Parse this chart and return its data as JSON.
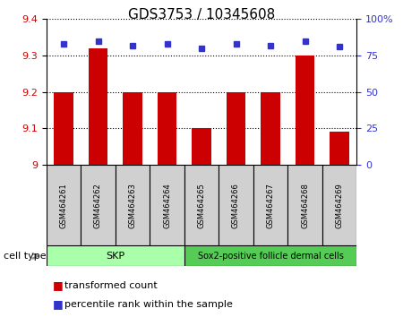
{
  "title": "GDS3753 / 10345608",
  "samples": [
    "GSM464261",
    "GSM464262",
    "GSM464263",
    "GSM464264",
    "GSM464265",
    "GSM464266",
    "GSM464267",
    "GSM464268",
    "GSM464269"
  ],
  "transformed_counts": [
    9.2,
    9.32,
    9.2,
    9.2,
    9.1,
    9.2,
    9.2,
    9.3,
    9.09
  ],
  "percentile_ranks": [
    83,
    85,
    82,
    83,
    80,
    83,
    82,
    85,
    81
  ],
  "ylim_left": [
    9.0,
    9.4
  ],
  "ylim_right": [
    0,
    100
  ],
  "yticks_left": [
    9.0,
    9.1,
    9.2,
    9.3,
    9.4
  ],
  "ytick_labels_left": [
    "9",
    "9.1",
    "9.2",
    "9.3",
    "9.4"
  ],
  "yticks_right": [
    0,
    25,
    50,
    75,
    100
  ],
  "ytick_labels_right": [
    "0",
    "25",
    "50",
    "75",
    "100%"
  ],
  "bar_color": "#cc0000",
  "dot_color": "#3333cc",
  "bar_width": 0.55,
  "group1_label": "SKP",
  "group2_label": "Sox2-positive follicle dermal cells",
  "group1_indices": [
    0,
    1,
    2,
    3
  ],
  "group2_indices": [
    4,
    5,
    6,
    7,
    8
  ],
  "group1_color": "#aaffaa",
  "group2_color": "#55cc55",
  "cell_type_label": "cell type",
  "legend_bar_label": "transformed count",
  "legend_dot_label": "percentile rank within the sample",
  "tick_label_color_left": "#cc0000",
  "tick_label_color_right": "#3333cc",
  "sample_box_color": "#d0d0d0"
}
